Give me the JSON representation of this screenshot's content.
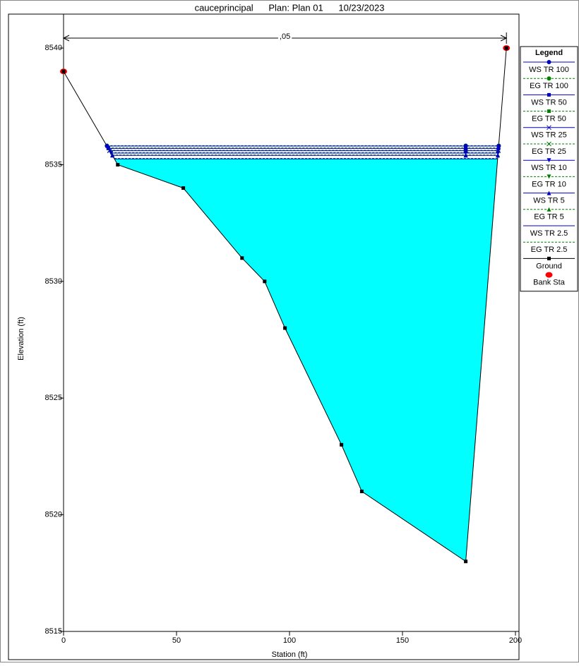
{
  "chart_data": {
    "type": "cross-section",
    "title": "cauceprincipal      Plan: Plan 01      10/23/2023",
    "x_label": "Station (ft)",
    "y_label": "Elevation (ft)",
    "xlim": [
      0,
      200
    ],
    "ylim": [
      8515,
      8541.5
    ],
    "xticks": [
      0,
      50,
      100,
      150,
      200
    ],
    "yticks": [
      8515,
      8520,
      8525,
      8530,
      8535,
      8540
    ],
    "legend_title": "Legend",
    "roughness": {
      "label": ",05",
      "x": [
        0,
        196
      ]
    },
    "fill_color": "#00ffff",
    "series": [
      {
        "name": "WS TR 100",
        "color": "#0000c0",
        "marker": "circle",
        "dash": false,
        "x": [
          19.2,
          178,
          192.6
        ],
        "values": [
          8535.8,
          8535.8,
          8535.8
        ]
      },
      {
        "name": "EG TR 100",
        "color": "#008000",
        "marker": "circle",
        "dash": true,
        "x": [
          19.2,
          178,
          192.6
        ],
        "values": [
          8535.82,
          8535.82,
          8535.82
        ]
      },
      {
        "name": "WS TR 50",
        "color": "#0000c0",
        "marker": "square",
        "dash": false,
        "x": [
          19.8,
          178,
          192.5
        ],
        "values": [
          8535.7,
          8535.7,
          8535.7
        ]
      },
      {
        "name": "EG TR 50",
        "color": "#008000",
        "marker": "square",
        "dash": true,
        "x": [
          19.8,
          178,
          192.5
        ],
        "values": [
          8535.72,
          8535.72,
          8535.72
        ]
      },
      {
        "name": "WS TR 25",
        "color": "#0000c0",
        "marker": "x",
        "dash": false,
        "x": [
          20.4,
          178,
          192.4
        ],
        "values": [
          8535.6,
          8535.6,
          8535.6
        ]
      },
      {
        "name": "EG TR 25",
        "color": "#008000",
        "marker": "x",
        "dash": true,
        "x": [
          20.4,
          178,
          192.4
        ],
        "values": [
          8535.62,
          8535.62,
          8535.62
        ]
      },
      {
        "name": "WS TR 10",
        "color": "#0000c0",
        "marker": "tri-down",
        "dash": false,
        "x": [
          21,
          178,
          192.3
        ],
        "values": [
          8535.5,
          8535.5,
          8535.5
        ]
      },
      {
        "name": "EG TR 10",
        "color": "#008000",
        "marker": "tri-down",
        "dash": true,
        "x": [
          21,
          178,
          192.3
        ],
        "values": [
          8535.52,
          8535.52,
          8535.52
        ]
      },
      {
        "name": "WS TR 5",
        "color": "#0000c0",
        "marker": "tri-up",
        "dash": false,
        "x": [
          21.6,
          178,
          192.2
        ],
        "values": [
          8535.4,
          8535.4,
          8535.4
        ]
      },
      {
        "name": "EG TR 5",
        "color": "#008000",
        "marker": "tri-up",
        "dash": true,
        "x": [
          21.6,
          178,
          192.2
        ],
        "values": [
          8535.42,
          8535.42,
          8535.42
        ]
      },
      {
        "name": "WS TR 2.5",
        "color": "#0000c0",
        "marker": "none",
        "dash": false,
        "x": [
          22.5,
          192.1
        ],
        "values": [
          8535.25,
          8535.25
        ]
      },
      {
        "name": "EG TR 2.5",
        "color": "#008000",
        "marker": "none",
        "dash": true,
        "x": [
          22.5,
          192.1
        ],
        "values": [
          8535.27,
          8535.27
        ]
      },
      {
        "name": "Ground",
        "color": "#000000",
        "marker": "square",
        "dash": false,
        "x": [
          0,
          24,
          53,
          79,
          89,
          98,
          123,
          132,
          178,
          196
        ],
        "values": [
          8539,
          8535,
          8534,
          8531,
          8530,
          8528,
          8523,
          8521,
          8518,
          8540
        ]
      },
      {
        "name": "Bank Sta",
        "color": "#ff0000",
        "marker": "bank",
        "dash": false,
        "x": [
          0,
          196
        ],
        "values": [
          8539,
          8540
        ]
      }
    ]
  }
}
